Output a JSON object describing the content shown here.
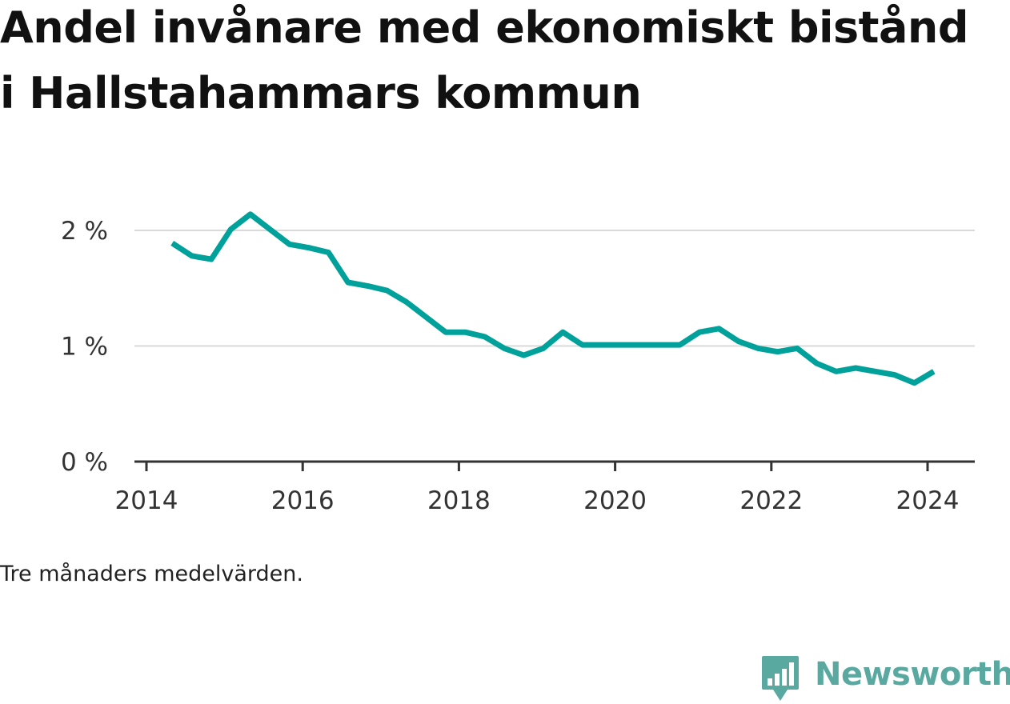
{
  "title": "Andel invånare med ekonomiskt bistånd i Hallstahammars kommun",
  "note": "Tre månaders medelvärden.",
  "brand": "Newsworthy",
  "colors": {
    "line": "#00a19a",
    "grid": "#d9d9d9",
    "axis": "#333333",
    "brand": "#5aa9a1"
  },
  "chart_data": {
    "type": "line",
    "title": "Andel invånare med ekonomiskt bistånd i Hallstahammars kommun",
    "xlabel": "",
    "ylabel": "",
    "xlim": [
      2014,
      2024.3
    ],
    "ylim": [
      0,
      2.15
    ],
    "x_ticks": [
      2014,
      2016,
      2018,
      2020,
      2022,
      2024
    ],
    "x_tick_labels": [
      "2014",
      "2016",
      "2018",
      "2020",
      "2022",
      "2024"
    ],
    "y_ticks": [
      0,
      1,
      2
    ],
    "y_tick_labels": [
      "0 %",
      "1 %",
      "2 %"
    ],
    "grid": true,
    "series": [
      {
        "x": [
          2014.33,
          2014.58,
          2014.83,
          2015.08,
          2015.33,
          2015.58,
          2015.83,
          2016.08,
          2016.33,
          2016.58,
          2016.83,
          2017.08,
          2017.33,
          2017.58,
          2017.83,
          2018.08,
          2018.33,
          2018.58,
          2018.83,
          2019.08,
          2019.33,
          2019.58,
          2019.83,
          2020.08,
          2020.33,
          2020.58,
          2020.83,
          2021.08,
          2021.33,
          2021.58,
          2021.83,
          2022.08,
          2022.33,
          2022.58,
          2022.83,
          2023.08,
          2023.33,
          2023.58,
          2023.83,
          2024.08
        ],
        "values": [
          1.89,
          1.78,
          1.75,
          2.01,
          2.14,
          2.01,
          1.88,
          1.85,
          1.81,
          1.55,
          1.52,
          1.48,
          1.38,
          1.25,
          1.12,
          1.12,
          1.08,
          0.98,
          0.92,
          0.98,
          1.12,
          1.01,
          1.01,
          1.01,
          1.01,
          1.01,
          1.01,
          1.12,
          1.15,
          1.04,
          0.98,
          0.95,
          0.98,
          0.85,
          0.78,
          0.81,
          0.78,
          0.75,
          0.68,
          0.78
        ]
      }
    ]
  }
}
